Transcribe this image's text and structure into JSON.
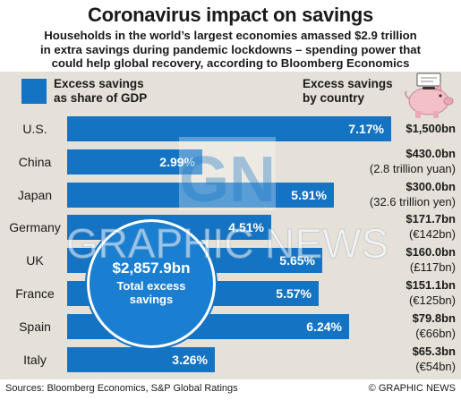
{
  "title": "Coronavirus impact on savings",
  "subtitle_lines": [
    "Households in the world’s largest economies amassed $2.9 trillion",
    "in extra savings during pandemic lockdowns – spending power that",
    "could help global recovery, according to Bloomberg Economics"
  ],
  "legend": {
    "line1": "Excess savings",
    "line2": "as share of GDP"
  },
  "country_header": {
    "line1": "Excess savings",
    "line2": "by country"
  },
  "total": {
    "value": "$2,857.9bn",
    "line1": "Total excess",
    "line2": "savings"
  },
  "watermark": {
    "monogram": "GN",
    "text": "GRAPHIC NEWS"
  },
  "footer": {
    "source": "Sources: Bloomberg Economics, S&P Global Ratings",
    "credit": "© GRAPHIC NEWS"
  },
  "colors": {
    "bar": "#1474c3",
    "panel": "#e5e1d8",
    "piggy": "#f3c0c8"
  },
  "icons": [
    "piggy-bank-icon"
  ],
  "chart_data": {
    "type": "bar",
    "orientation": "horizontal",
    "categories": [
      "U.S.",
      "China",
      "Japan",
      "Germany",
      "UK",
      "France",
      "Spain",
      "Italy"
    ],
    "values": [
      7.17,
      2.99,
      5.91,
      4.51,
      5.65,
      5.57,
      6.24,
      3.26
    ],
    "value_labels": [
      "7.17%",
      "2.99%",
      "5.91%",
      "4.51%",
      "5.65%",
      "5.57%",
      "6.24%",
      "3.26%"
    ],
    "amounts": [
      "$1,500bn",
      "$430.0bn",
      "$300.0bn",
      "$171.7bn",
      "$160.0bn",
      "$151.1bn",
      "$79.8bn",
      "$65.3bn"
    ],
    "amount_notes": [
      "",
      "(2.8 trillion yuan)",
      "(32.6 trillion yen)",
      "(€142bn)",
      "(£117bn)",
      "(€125bn)",
      "(€66bn)",
      "(€54bn)"
    ],
    "xlim": [
      0,
      7.17
    ],
    "grid": false,
    "legend_position": "top-left"
  }
}
